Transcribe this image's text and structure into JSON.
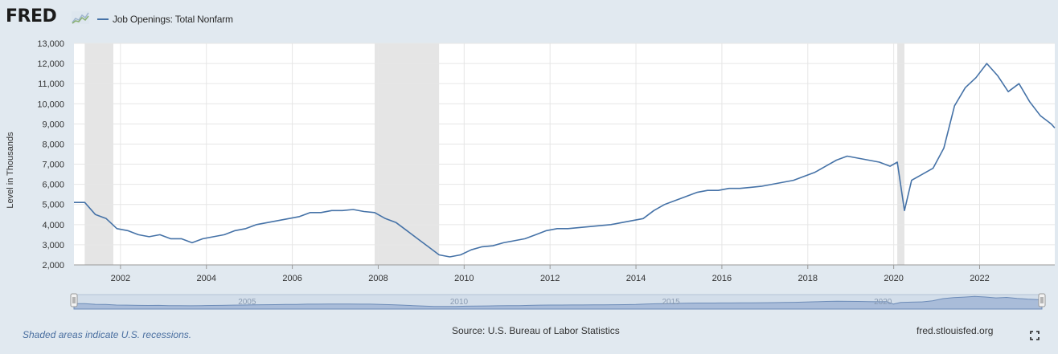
{
  "header": {
    "logo": "FRED",
    "legend_label": "Job Openings: Total Nonfarm"
  },
  "footer": {
    "recession_note": "Shaded areas indicate U.S. recessions.",
    "source": "Source: U.S. Bureau of Labor Statistics",
    "site": "fred.stlouisfed.org"
  },
  "colors": {
    "background": "#e1e9f0",
    "plot_bg": "#ffffff",
    "line": "#4572a7",
    "recession": "#e5e5e5",
    "navigator_fill": "#a9bcd9"
  },
  "icons": [
    "fred-logo-graph-icon",
    "fullscreen-icon",
    "navigator-left-handle-icon",
    "navigator-right-handle-icon"
  ],
  "navigator": {
    "tick_labels": [
      "2005",
      "2010",
      "2015",
      "2020"
    ]
  },
  "chart_data": {
    "type": "line",
    "title": "",
    "xlabel": "",
    "ylabel": "Level in Thousands",
    "xlim": [
      "2000-12",
      "2023-10"
    ],
    "ylim": [
      2000,
      13000
    ],
    "y_ticks": [
      2000,
      3000,
      4000,
      5000,
      6000,
      7000,
      8000,
      9000,
      10000,
      11000,
      12000,
      13000
    ],
    "y_tick_labels": [
      "2,000",
      "3,000",
      "4,000",
      "5,000",
      "6,000",
      "7,000",
      "8,000",
      "9,000",
      "10,000",
      "11,000",
      "12,000",
      "13,000"
    ],
    "x_ticks": [
      2002,
      2004,
      2006,
      2008,
      2010,
      2012,
      2014,
      2016,
      2018,
      2020,
      2022
    ],
    "x_tick_labels": [
      "2002",
      "2004",
      "2006",
      "2008",
      "2010",
      "2012",
      "2014",
      "2016",
      "2018",
      "2020",
      "2022"
    ],
    "grid": true,
    "legend": "top-left",
    "recessions": [
      [
        "2001-03",
        "2001-11"
      ],
      [
        "2007-12",
        "2009-06"
      ],
      [
        "2020-02",
        "2020-04"
      ]
    ],
    "series": [
      {
        "name": "Job Openings: Total Nonfarm",
        "x": [
          "2000-12",
          "2001-03",
          "2001-06",
          "2001-09",
          "2001-12",
          "2002-03",
          "2002-06",
          "2002-09",
          "2002-12",
          "2003-03",
          "2003-06",
          "2003-09",
          "2003-12",
          "2004-03",
          "2004-06",
          "2004-09",
          "2004-12",
          "2005-03",
          "2005-06",
          "2005-09",
          "2005-12",
          "2006-03",
          "2006-06",
          "2006-09",
          "2006-12",
          "2007-03",
          "2007-06",
          "2007-09",
          "2007-12",
          "2008-03",
          "2008-06",
          "2008-09",
          "2008-12",
          "2009-03",
          "2009-06",
          "2009-09",
          "2009-12",
          "2010-03",
          "2010-06",
          "2010-09",
          "2010-12",
          "2011-03",
          "2011-06",
          "2011-09",
          "2011-12",
          "2012-03",
          "2012-06",
          "2012-09",
          "2012-12",
          "2013-03",
          "2013-06",
          "2013-09",
          "2013-12",
          "2014-03",
          "2014-06",
          "2014-09",
          "2014-12",
          "2015-03",
          "2015-06",
          "2015-09",
          "2015-12",
          "2016-03",
          "2016-06",
          "2016-09",
          "2016-12",
          "2017-03",
          "2017-06",
          "2017-09",
          "2017-12",
          "2018-03",
          "2018-06",
          "2018-09",
          "2018-12",
          "2019-03",
          "2019-06",
          "2019-09",
          "2019-12",
          "2020-02",
          "2020-04",
          "2020-06",
          "2020-09",
          "2020-12",
          "2021-03",
          "2021-06",
          "2021-09",
          "2021-12",
          "2022-03",
          "2022-06",
          "2022-09",
          "2022-12",
          "2023-03",
          "2023-06",
          "2023-09",
          "2023-10"
        ],
        "values": [
          5100,
          5100,
          4500,
          4300,
          3800,
          3700,
          3500,
          3400,
          3500,
          3300,
          3300,
          3100,
          3300,
          3400,
          3500,
          3700,
          3800,
          4000,
          4100,
          4200,
          4300,
          4400,
          4600,
          4600,
          4700,
          4700,
          4750,
          4650,
          4600,
          4300,
          4100,
          3700,
          3300,
          2900,
          2500,
          2400,
          2500,
          2750,
          2900,
          2950,
          3100,
          3200,
          3300,
          3500,
          3700,
          3800,
          3800,
          3850,
          3900,
          3950,
          4000,
          4100,
          4200,
          4300,
          4700,
          5000,
          5200,
          5400,
          5600,
          5700,
          5700,
          5800,
          5800,
          5850,
          5900,
          6000,
          6100,
          6200,
          6400,
          6600,
          6900,
          7200,
          7400,
          7300,
          7200,
          7100,
          6900,
          7100,
          4700,
          6200,
          6500,
          6800,
          7800,
          9900,
          10800,
          11300,
          12000,
          11400,
          10600,
          11000,
          10100,
          9400,
          9000,
          8800
        ]
      }
    ]
  }
}
